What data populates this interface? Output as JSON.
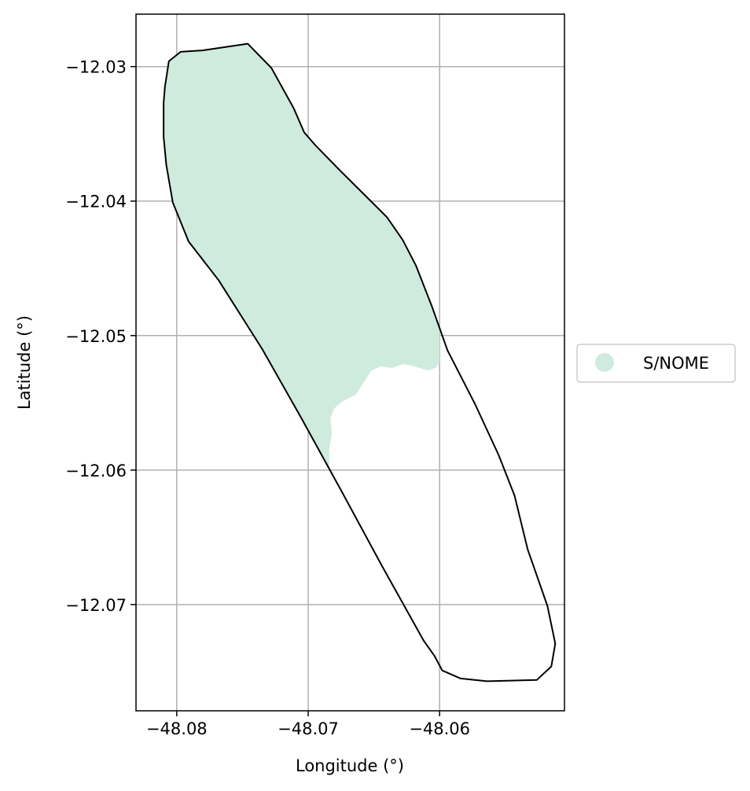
{
  "chart_data": {
    "type": "map",
    "xlabel": "Longitude (°)",
    "ylabel": "Latitude (°)",
    "xlim": [
      -48.0831,
      -48.0505
    ],
    "ylim": [
      -12.0779,
      -12.0261
    ],
    "xticks": [
      -48.08,
      -48.07,
      -48.06
    ],
    "yticks": [
      -12.03,
      -12.04,
      -12.05,
      -12.06,
      -12.07
    ],
    "xtick_labels": [
      "−48.08",
      "−48.07",
      "−48.06"
    ],
    "ytick_labels": [
      "−12.03",
      "−12.04",
      "−12.05",
      "−12.06",
      "−12.07"
    ],
    "grid": true,
    "legend_position": "center-right outside",
    "legend": [
      {
        "label": "S/NOME",
        "color": "#cfebde"
      }
    ],
    "boundary_color": "#000000",
    "boundary": [
      [
        -48.0746,
        -12.0283
      ],
      [
        -48.0728,
        -12.0301
      ],
      [
        -48.0711,
        -12.0331
      ],
      [
        -48.0703,
        -12.0349
      ],
      [
        -48.0695,
        -12.0358
      ],
      [
        -48.0676,
        -12.0377
      ],
      [
        -48.064,
        -12.0412
      ],
      [
        -48.0628,
        -12.0429
      ],
      [
        -48.0618,
        -12.0448
      ],
      [
        -48.0606,
        -12.0478
      ],
      [
        -48.0594,
        -12.0511
      ],
      [
        -48.0573,
        -12.0551
      ],
      [
        -48.0555,
        -12.0589
      ],
      [
        -48.0543,
        -12.0619
      ],
      [
        -48.0533,
        -12.0659
      ],
      [
        -48.0518,
        -12.0701
      ],
      [
        -48.0512,
        -12.0729
      ],
      [
        -48.0515,
        -12.0746
      ],
      [
        -48.0526,
        -12.0756
      ],
      [
        -48.0564,
        -12.0757
      ],
      [
        -48.0584,
        -12.0755
      ],
      [
        -48.0598,
        -12.0749
      ],
      [
        -48.0604,
        -12.0738
      ],
      [
        -48.0612,
        -12.0727
      ],
      [
        -48.0644,
        -12.0671
      ],
      [
        -48.0675,
        -12.0615
      ],
      [
        -48.0706,
        -12.056
      ],
      [
        -48.0735,
        -12.051
      ],
      [
        -48.0768,
        -12.0459
      ],
      [
        -48.0791,
        -12.043
      ],
      [
        -48.0803,
        -12.0401
      ],
      [
        -48.0808,
        -12.0373
      ],
      [
        -48.081,
        -12.0352
      ],
      [
        -48.081,
        -12.0327
      ],
      [
        -48.0809,
        -12.0315
      ],
      [
        -48.0806,
        -12.0296
      ],
      [
        -48.0797,
        -12.0289
      ],
      [
        -48.0781,
        -12.0288
      ],
      [
        -48.0746,
        -12.0283
      ]
    ],
    "class_area": [
      [
        -48.0746,
        -12.0283
      ],
      [
        -48.0728,
        -12.0301
      ],
      [
        -48.0711,
        -12.0331
      ],
      [
        -48.0703,
        -12.0349
      ],
      [
        -48.0695,
        -12.0358
      ],
      [
        -48.0676,
        -12.0377
      ],
      [
        -48.064,
        -12.0412
      ],
      [
        -48.0628,
        -12.0429
      ],
      [
        -48.0618,
        -12.0448
      ],
      [
        -48.0606,
        -12.0478
      ],
      [
        -48.06,
        -12.0494
      ],
      [
        -48.06,
        -12.052
      ],
      [
        -48.0603,
        -12.0524
      ],
      [
        -48.0609,
        -12.0526
      ],
      [
        -48.0619,
        -12.0523
      ],
      [
        -48.0627,
        -12.0521
      ],
      [
        -48.0636,
        -12.0524
      ],
      [
        -48.0645,
        -12.0523
      ],
      [
        -48.0652,
        -12.0526
      ],
      [
        -48.0657,
        -12.0534
      ],
      [
        -48.0664,
        -12.0544
      ],
      [
        -48.0674,
        -12.0549
      ],
      [
        -48.068,
        -12.0554
      ],
      [
        -48.0683,
        -12.0561
      ],
      [
        -48.0682,
        -12.0573
      ],
      [
        -48.0684,
        -12.0584
      ],
      [
        -48.0684,
        -12.0598
      ],
      [
        -48.0706,
        -12.056
      ],
      [
        -48.0735,
        -12.051
      ],
      [
        -48.0768,
        -12.0459
      ],
      [
        -48.0791,
        -12.043
      ],
      [
        -48.0803,
        -12.0401
      ],
      [
        -48.0808,
        -12.0373
      ],
      [
        -48.081,
        -12.0352
      ],
      [
        -48.081,
        -12.0327
      ],
      [
        -48.0809,
        -12.0315
      ],
      [
        -48.0806,
        -12.0296
      ],
      [
        -48.0797,
        -12.0289
      ],
      [
        -48.0781,
        -12.0288
      ],
      [
        -48.0746,
        -12.0283
      ]
    ]
  }
}
